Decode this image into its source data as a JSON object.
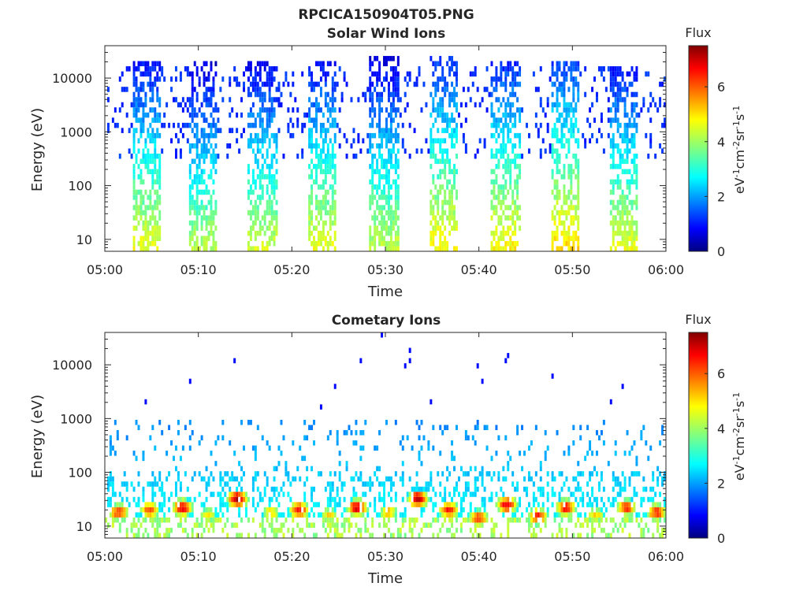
{
  "figure": {
    "filename_title": "RPCICA150904T05.PNG"
  },
  "chart_data": [
    {
      "type": "heatmap",
      "title": "Solar Wind Ions",
      "xlabel": "Time",
      "ylabel": "Energy (eV)",
      "x_ticks": [
        "05:00",
        "05:10",
        "05:20",
        "05:30",
        "05:40",
        "05:50",
        "06:00"
      ],
      "x_range_minutes": [
        0,
        60
      ],
      "y_scale": "log",
      "y_ticks": [
        "10",
        "100",
        "1000",
        "10000"
      ],
      "y_tick_values": [
        10,
        100,
        1000,
        10000
      ],
      "y_range": [
        6,
        40000
      ],
      "colorbar": {
        "title": "Flux",
        "label": "eV-1cm-2sr-1s-1",
        "ticks": [
          "0",
          "2",
          "4",
          "6"
        ],
        "range": [
          0,
          7.5
        ],
        "colormap": "jet"
      },
      "bursts": [
        {
          "center_min": 4.5,
          "width_min": 3.0,
          "peak_flux_low": 4.6,
          "top_ev": 20000
        },
        {
          "center_min": 10.5,
          "width_min": 3.0,
          "peak_flux_low": 4.2,
          "top_ev": 20000
        },
        {
          "center_min": 16.8,
          "width_min": 3.2,
          "peak_flux_low": 4.4,
          "top_ev": 20000
        },
        {
          "center_min": 23.2,
          "width_min": 3.0,
          "peak_flux_low": 4.6,
          "top_ev": 20000
        },
        {
          "center_min": 29.8,
          "width_min": 3.2,
          "peak_flux_low": 4.3,
          "top_ev": 25000
        },
        {
          "center_min": 36.3,
          "width_min": 3.0,
          "peak_flux_low": 4.8,
          "top_ev": 25000
        },
        {
          "center_min": 42.8,
          "width_min": 3.2,
          "peak_flux_low": 4.8,
          "top_ev": 20000
        },
        {
          "center_min": 49.2,
          "width_min": 3.0,
          "peak_flux_low": 5.0,
          "top_ev": 20000
        },
        {
          "center_min": 55.5,
          "width_min": 3.0,
          "peak_flux_low": 4.6,
          "top_ev": 15000
        }
      ]
    },
    {
      "type": "heatmap",
      "title": "Cometary Ions",
      "xlabel": "Time",
      "ylabel": "Energy (eV)",
      "x_ticks": [
        "05:00",
        "05:10",
        "05:20",
        "05:30",
        "05:40",
        "05:50",
        "06:00"
      ],
      "x_range_minutes": [
        0,
        60
      ],
      "y_scale": "log",
      "y_ticks": [
        "10",
        "100",
        "1000",
        "10000"
      ],
      "y_tick_values": [
        10,
        100,
        1000,
        10000
      ],
      "y_range": [
        6,
        40000
      ],
      "colorbar": {
        "title": "Flux",
        "label": "eV-1cm-2sr-1s-1",
        "ticks": [
          "0",
          "2",
          "4",
          "6"
        ],
        "range": [
          0,
          7.5
        ],
        "colormap": "jet"
      },
      "hotspots": [
        {
          "center_min": 1.5,
          "energy_ev": 18,
          "peak_flux": 6.3
        },
        {
          "center_min": 4.8,
          "energy_ev": 20,
          "peak_flux": 6.0
        },
        {
          "center_min": 8.3,
          "energy_ev": 22,
          "peak_flux": 6.8
        },
        {
          "center_min": 11.0,
          "energy_ev": 16,
          "peak_flux": 4.8
        },
        {
          "center_min": 14.2,
          "energy_ev": 32,
          "peak_flux": 7.2
        },
        {
          "center_min": 17.8,
          "energy_ev": 18,
          "peak_flux": 5.0
        },
        {
          "center_min": 20.8,
          "energy_ev": 20,
          "peak_flux": 6.6
        },
        {
          "center_min": 24.0,
          "energy_ev": 16,
          "peak_flux": 5.0
        },
        {
          "center_min": 27.0,
          "energy_ev": 22,
          "peak_flux": 7.0
        },
        {
          "center_min": 30.3,
          "energy_ev": 18,
          "peak_flux": 5.2
        },
        {
          "center_min": 33.5,
          "energy_ev": 32,
          "peak_flux": 7.2
        },
        {
          "center_min": 36.8,
          "energy_ev": 20,
          "peak_flux": 6.5
        },
        {
          "center_min": 40.0,
          "energy_ev": 14,
          "peak_flux": 6.2
        },
        {
          "center_min": 43.0,
          "energy_ev": 25,
          "peak_flux": 6.8
        },
        {
          "center_min": 46.3,
          "energy_ev": 15,
          "peak_flux": 6.4
        },
        {
          "center_min": 49.3,
          "energy_ev": 22,
          "peak_flux": 6.6
        },
        {
          "center_min": 52.5,
          "energy_ev": 16,
          "peak_flux": 5.0
        },
        {
          "center_min": 55.8,
          "energy_ev": 22,
          "peak_flux": 6.3
        },
        {
          "center_min": 59.0,
          "energy_ev": 18,
          "peak_flux": 6.4
        }
      ]
    }
  ]
}
